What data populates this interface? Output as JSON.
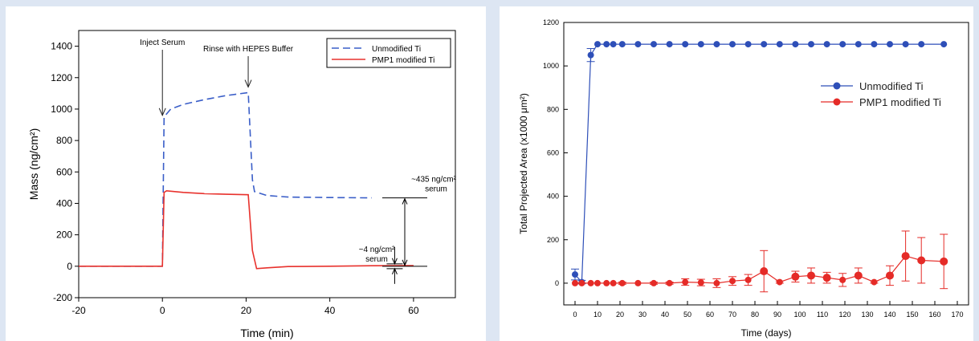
{
  "chart_data": [
    {
      "type": "line",
      "title": "",
      "xlabel": "Time (min)",
      "ylabel": "Mass (ng/cm²)",
      "xlim": [
        -20,
        70
      ],
      "ylim": [
        -200,
        1500
      ],
      "xticks": [
        "-20",
        "0",
        "20",
        "40",
        "60"
      ],
      "yticks": [
        "-200",
        "0",
        "200",
        "400",
        "600",
        "800",
        "1000",
        "1200",
        "1400"
      ],
      "legend_position": "top-right",
      "annotations": {
        "inject": "Inject Serum",
        "rinse": "Rinse with HEPES Buffer",
        "big_line1": "~435 ng/cm²",
        "big_line2": "serum",
        "small_line1": "~4 ng/cm²",
        "small_line2": "serum"
      },
      "series": [
        {
          "name": "Unmodified Ti",
          "color": "#3a5ec8",
          "style": "dashed",
          "points": [
            [
              -20,
              0
            ],
            [
              0,
              0
            ],
            [
              0.4,
              950
            ],
            [
              2,
              1000
            ],
            [
              5,
              1030
            ],
            [
              10,
              1060
            ],
            [
              15,
              1085
            ],
            [
              20.5,
              1105
            ],
            [
              21.5,
              550
            ],
            [
              22,
              475
            ],
            [
              25,
              450
            ],
            [
              30,
              440
            ],
            [
              40,
              437
            ],
            [
              50,
              435
            ]
          ]
        },
        {
          "name": "PMP1 modified Ti",
          "color": "#e8322d",
          "style": "solid",
          "points": [
            [
              -20,
              0
            ],
            [
              0,
              0
            ],
            [
              0.4,
              470
            ],
            [
              1,
              480
            ],
            [
              5,
              470
            ],
            [
              10,
              462
            ],
            [
              15,
              458
            ],
            [
              20.5,
              455
            ],
            [
              21.5,
              100
            ],
            [
              22.5,
              -15
            ],
            [
              25,
              -10
            ],
            [
              30,
              -2
            ],
            [
              40,
              0
            ],
            [
              50,
              3
            ],
            [
              60,
              4
            ]
          ]
        }
      ]
    },
    {
      "type": "line",
      "title": "",
      "xlabel": "Time (days)",
      "ylabel": "Total Projected Area (x1000 μm²)",
      "xlim": [
        -5,
        175
      ],
      "ylim": [
        -100,
        1200
      ],
      "xticks": [
        "0",
        "10",
        "20",
        "30",
        "40",
        "50",
        "60",
        "70",
        "80",
        "90",
        "100",
        "110",
        "120",
        "130",
        "140",
        "150",
        "160",
        "170"
      ],
      "yticks": [
        "0",
        "200",
        "400",
        "600",
        "800",
        "1000",
        "1200"
      ],
      "legend_position": "right",
      "series": [
        {
          "name": "Unmodified Ti",
          "color": "#2e4fb8",
          "x": [
            0,
            3,
            7,
            10,
            14,
            17,
            21,
            28,
            35,
            42,
            49,
            56,
            63,
            70,
            77,
            84,
            91,
            98,
            105,
            112,
            119,
            126,
            133,
            140,
            147,
            154,
            164
          ],
          "y": [
            40,
            5,
            1050,
            1100,
            1100,
            1100,
            1100,
            1100,
            1100,
            1100,
            1100,
            1100,
            1100,
            1100,
            1100,
            1100,
            1100,
            1100,
            1100,
            1100,
            1100,
            1100,
            1100,
            1100,
            1100,
            1100,
            1100
          ],
          "err": [
            25,
            8,
            30,
            0,
            0,
            0,
            0,
            0,
            0,
            0,
            0,
            0,
            0,
            0,
            0,
            0,
            0,
            0,
            0,
            0,
            0,
            0,
            0,
            0,
            0,
            0,
            0
          ]
        },
        {
          "name": "PMP1 modified Ti",
          "color": "#e52b27",
          "x": [
            0,
            3,
            7,
            10,
            14,
            17,
            21,
            28,
            35,
            42,
            49,
            56,
            63,
            70,
            77,
            84,
            91,
            98,
            105,
            112,
            119,
            126,
            133,
            140,
            147,
            154,
            164
          ],
          "y": [
            0,
            0,
            0,
            0,
            0,
            0,
            0,
            0,
            0,
            0,
            5,
            3,
            0,
            10,
            15,
            55,
            5,
            30,
            35,
            25,
            15,
            35,
            5,
            35,
            125,
            105,
            100
          ],
          "err": [
            0,
            0,
            0,
            0,
            0,
            0,
            5,
            0,
            5,
            5,
            15,
            15,
            20,
            20,
            25,
            95,
            5,
            25,
            35,
            25,
            30,
            35,
            5,
            45,
            115,
            105,
            125
          ]
        }
      ]
    }
  ]
}
